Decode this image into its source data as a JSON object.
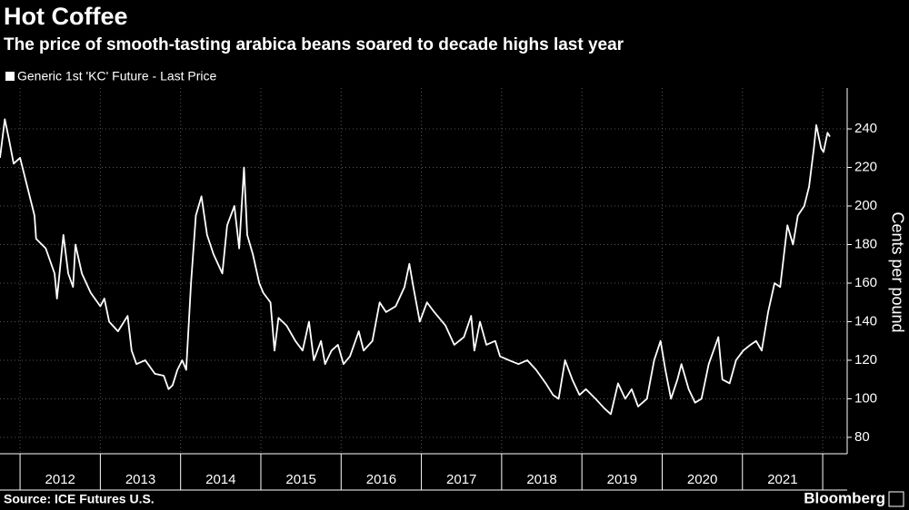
{
  "chart_data": {
    "type": "line",
    "title": "Hot Coffee",
    "subtitle": "The price of smooth-tasting arabica beans soared to decade highs last year",
    "y_label": "Cents per pound",
    "source": "Source: ICE Futures U.S.",
    "brand": "Bloomberg",
    "grid": true,
    "xlim": [
      2011.75,
      2022.305
    ],
    "ylim": [
      71.5,
      261.2
    ],
    "xticks": [
      {
        "value": 2012,
        "label": "2012"
      },
      {
        "value": 2013,
        "label": "2013"
      },
      {
        "value": 2014,
        "label": "2014"
      },
      {
        "value": 2015,
        "label": "2015"
      },
      {
        "value": 2016,
        "label": "2016"
      },
      {
        "value": 2017,
        "label": "2017"
      },
      {
        "value": 2018,
        "label": "2018"
      },
      {
        "value": 2019,
        "label": "2019"
      },
      {
        "value": 2020,
        "label": "2020"
      },
      {
        "value": 2021,
        "label": "2021"
      }
    ],
    "yticks": [
      80,
      100,
      120,
      140,
      160,
      180,
      200,
      220,
      240
    ],
    "series": [
      {
        "name": "Generic 1st 'KC' Future - Last Price",
        "color": "#ffffff",
        "x": [
          2011.75,
          2011.81,
          2011.86,
          2011.92,
          2012.0,
          2012.09,
          2012.18,
          2012.2,
          2012.32,
          2012.43,
          2012.46,
          2012.54,
          2012.6,
          2012.66,
          2012.69,
          2012.77,
          2012.88,
          2013.0,
          2013.05,
          2013.11,
          2013.22,
          2013.34,
          2013.39,
          2013.45,
          2013.56,
          2013.68,
          2013.79,
          2013.85,
          2013.9,
          2013.96,
          2014.02,
          2014.07,
          2014.13,
          2014.19,
          2014.26,
          2014.33,
          2014.41,
          2014.52,
          2014.58,
          2014.67,
          2014.73,
          2014.79,
          2014.83,
          2014.9,
          2014.98,
          2015.03,
          2015.12,
          2015.17,
          2015.22,
          2015.32,
          2015.43,
          2015.52,
          2015.6,
          2015.66,
          2015.75,
          2015.8,
          2015.88,
          2015.96,
          2016.03,
          2016.11,
          2016.22,
          2016.28,
          2016.39,
          2016.48,
          2016.56,
          2016.68,
          2016.79,
          2016.85,
          2016.9,
          2016.98,
          2017.07,
          2017.16,
          2017.3,
          2017.41,
          2017.53,
          2017.62,
          2017.66,
          2017.73,
          2017.81,
          2017.92,
          2017.98,
          2018.09,
          2018.21,
          2018.32,
          2018.43,
          2018.55,
          2018.64,
          2018.71,
          2018.79,
          2018.88,
          2018.97,
          2019.05,
          2019.17,
          2019.28,
          2019.36,
          2019.45,
          2019.54,
          2019.62,
          2019.7,
          2019.81,
          2019.9,
          2019.98,
          2020.04,
          2020.11,
          2020.19,
          2020.24,
          2020.33,
          2020.41,
          2020.49,
          2020.58,
          2020.7,
          2020.75,
          2020.84,
          2020.92,
          2021.01,
          2021.1,
          2021.17,
          2021.24,
          2021.32,
          2021.4,
          2021.47,
          2021.56,
          2021.63,
          2021.69,
          2021.77,
          2021.83,
          2021.89,
          2021.92,
          2021.98,
          2022.01,
          2022.06,
          2022.09
        ],
        "values": [
          225,
          245,
          235,
          222,
          225,
          210,
          195,
          183,
          178,
          165,
          152,
          185,
          165,
          158,
          180,
          165,
          155,
          148,
          152,
          140,
          135,
          143,
          125,
          118,
          120,
          113,
          112,
          105,
          107,
          115,
          120,
          115,
          160,
          195,
          205,
          185,
          175,
          165,
          190,
          200,
          178,
          220,
          185,
          175,
          160,
          155,
          150,
          125,
          142,
          138,
          130,
          125,
          140,
          120,
          130,
          118,
          125,
          128,
          118,
          122,
          135,
          125,
          130,
          150,
          145,
          148,
          158,
          170,
          158,
          140,
          150,
          145,
          138,
          128,
          132,
          143,
          125,
          140,
          128,
          130,
          122,
          120,
          118,
          120,
          115,
          108,
          102,
          100,
          120,
          110,
          102,
          105,
          100,
          95,
          92,
          108,
          100,
          105,
          96,
          100,
          120,
          130,
          115,
          100,
          110,
          118,
          105,
          98,
          100,
          118,
          132,
          110,
          108,
          120,
          125,
          128,
          130,
          125,
          145,
          160,
          158,
          190,
          180,
          195,
          200,
          210,
          230,
          242,
          230,
          228,
          238,
          236
        ]
      }
    ]
  }
}
